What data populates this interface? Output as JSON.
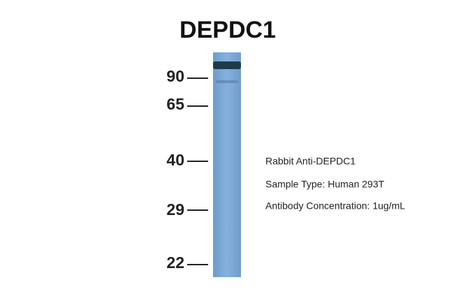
{
  "title": "DEPDC1",
  "markers": [
    "90",
    "65",
    "40",
    "29",
    "22"
  ],
  "annotations": [
    "Rabbit Anti-DEPDC1",
    "Sample Type: Human 293T",
    "Antibody Concentration: 1ug/mL"
  ]
}
